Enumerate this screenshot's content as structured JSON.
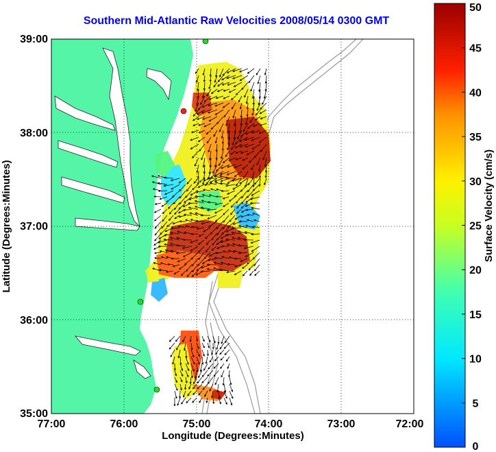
{
  "title": "Southern Mid-Atlantic Raw Velocities 2008/05/14 0300 GMT",
  "axes": {
    "xlabel": "Longitude (Degrees:Minutes)",
    "ylabel": "Latitude (Degrees:Minutes)",
    "x_ticks": [
      "77:00",
      "76:00",
      "75:00",
      "74:00",
      "73:00",
      "72:00"
    ],
    "y_ticks": [
      "39:00",
      "38:00",
      "37:00",
      "36:00",
      "35:00"
    ]
  },
  "colorbar": {
    "label": "Surface Velocity (cm/s)",
    "ticks": [
      "0",
      "5",
      "10",
      "15",
      "20",
      "25",
      "30",
      "35",
      "40",
      "45",
      "50"
    ],
    "range": [
      0,
      50
    ]
  },
  "colors": {
    "land": "#55f5a8",
    "water": "#ffffff",
    "bathymetry": "#999999",
    "title": "#0000ee",
    "stations": "#22dd22"
  }
}
